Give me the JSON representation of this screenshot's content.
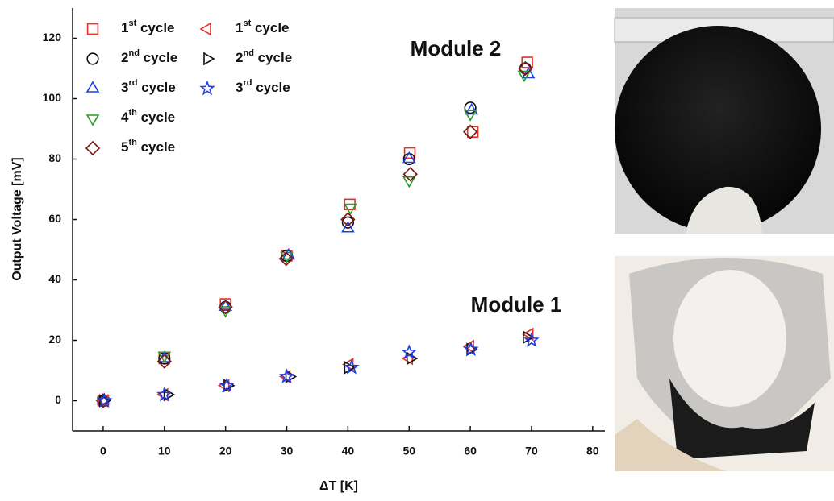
{
  "chart_data": {
    "type": "scatter",
    "xlabel": "ΔT [K]",
    "ylabel": "Output Voltage [mV]",
    "xlim": [
      -5,
      82
    ],
    "ylim": [
      -10,
      130
    ],
    "xticks": [
      0,
      10,
      20,
      30,
      40,
      50,
      60,
      70,
      80
    ],
    "yticks": [
      0,
      20,
      40,
      60,
      80,
      100,
      120
    ],
    "annotations": [
      "Module 2",
      "Module 1"
    ],
    "series": [
      {
        "name": "1st cycle",
        "marker": "square",
        "color": "#e8302a",
        "x": [
          0,
          10,
          20,
          30,
          40.3,
          50.1,
          60.4,
          69.3
        ],
        "values": [
          0,
          14,
          32,
          48,
          65,
          82,
          89,
          112
        ]
      },
      {
        "name": "2nd cycle",
        "marker": "circle",
        "color": "#111111",
        "x": [
          0,
          10,
          20,
          30,
          40,
          50,
          60,
          69
        ],
        "values": [
          0,
          14,
          31,
          48,
          59,
          80,
          97,
          110
        ]
      },
      {
        "name": "3rd cycle",
        "marker": "triangle-up",
        "color": "#1f3fe0",
        "x": [
          0,
          10,
          20,
          30.3,
          40,
          50,
          60.2,
          69.5
        ],
        "values": [
          0,
          14,
          31,
          48,
          57,
          80,
          96,
          108
        ]
      },
      {
        "name": "4th cycle",
        "marker": "triangle-down",
        "color": "#2a9a2a",
        "x": [
          0,
          10,
          20,
          30,
          40.4,
          50,
          60,
          68.8
        ],
        "values": [
          0,
          15,
          30,
          48,
          64,
          73,
          95,
          108
        ]
      },
      {
        "name": "5th cycle",
        "marker": "diamond",
        "color": "#7a1a12",
        "x": [
          0,
          10,
          20,
          29.9,
          40,
          50.2,
          60,
          69
        ],
        "values": [
          0,
          13,
          31,
          47,
          60,
          75,
          89,
          110
        ]
      },
      {
        "name": "1st cycle",
        "marker": "triangle-left",
        "color": "#e8302a",
        "x": [
          0.2,
          10,
          20,
          30,
          40.3,
          50,
          60,
          69.7
        ],
        "values": [
          0,
          2,
          5,
          8,
          12,
          14,
          18,
          22
        ]
      },
      {
        "name": "2nd cycle",
        "marker": "triangle-right",
        "color": "#111111",
        "x": [
          0,
          10.5,
          20.3,
          30.4,
          40,
          50.2,
          60,
          69.2
        ],
        "values": [
          0,
          2,
          5,
          8,
          11,
          14,
          17,
          21
        ]
      },
      {
        "name": "3rd cycle",
        "marker": "star",
        "color": "#1f3fe0",
        "x": [
          0.2,
          10,
          20.2,
          30,
          40.6,
          50,
          60.1,
          70
        ],
        "values": [
          0,
          2,
          5,
          8,
          11,
          16,
          17,
          20
        ]
      }
    ]
  }
}
